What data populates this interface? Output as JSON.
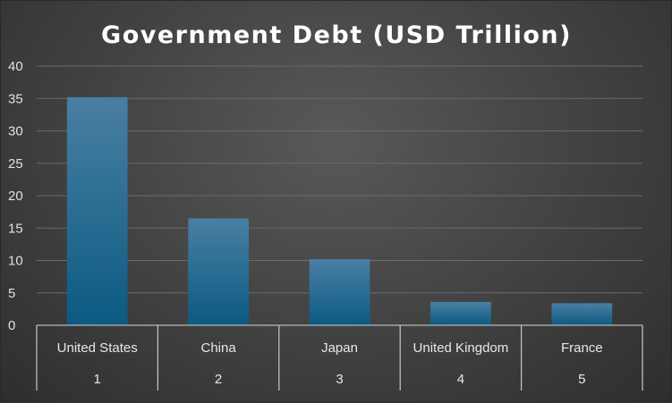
{
  "chart_data": {
    "type": "bar",
    "title": "Government Debt (USD Trillion)",
    "categories": [
      "United States",
      "China",
      "Japan",
      "United Kingdom",
      "France"
    ],
    "category_ranks": [
      "1",
      "2",
      "3",
      "4",
      "5"
    ],
    "values": [
      35.2,
      16.5,
      10.2,
      3.6,
      3.4
    ],
    "xlabel": "",
    "ylabel": "",
    "ylim": [
      0,
      40
    ],
    "yticks": [
      0,
      5,
      10,
      15,
      20,
      25,
      30,
      35,
      40
    ],
    "grid": true,
    "legend": "none",
    "colors": {
      "bar_top": "#4a7fa3",
      "bar_bottom": "#0b5a82",
      "background": "#454545",
      "title": "#ffffff"
    }
  }
}
